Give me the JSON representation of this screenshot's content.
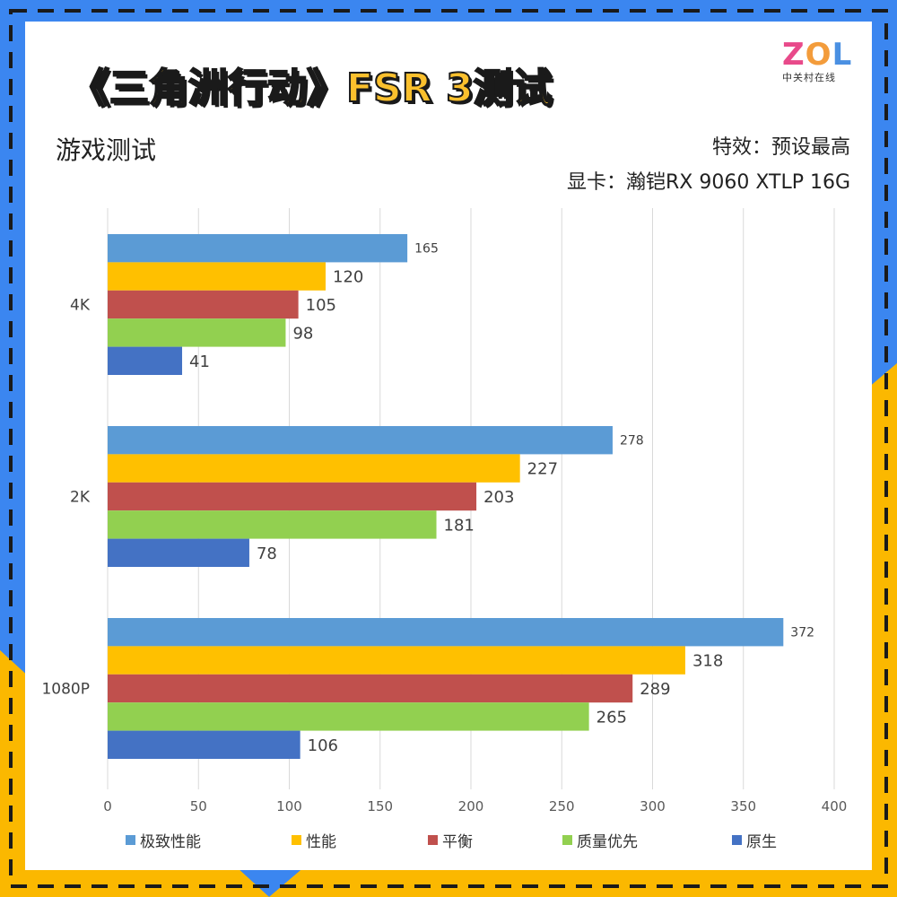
{
  "title": "《三角洲行动》FSR 3测试",
  "logo": {
    "main": "ZOL",
    "sub": "中关村在线"
  },
  "subtitle": "游戏测试",
  "notes": {
    "effects": "特效：预设最高",
    "gpu": "显卡：瀚铠RX 9060 XTLP 16G"
  },
  "colors": {
    "frame_blue": "#3b86f0",
    "frame_yellow": "#fbb800",
    "dash": "#1a1a1a",
    "title_fill": "#fbc02d"
  },
  "chart_data": {
    "type": "bar",
    "orientation": "horizontal",
    "categories": [
      "4K",
      "2K",
      "1080P"
    ],
    "series": [
      {
        "name": "极致性能",
        "color": "#5b9bd5",
        "values": [
          165,
          278,
          372
        ]
      },
      {
        "name": "性能",
        "color": "#ffc000",
        "values": [
          120,
          227,
          318
        ]
      },
      {
        "name": "平衡",
        "color": "#c0504d",
        "values": [
          105,
          203,
          289
        ]
      },
      {
        "name": "质量优先",
        "color": "#92d050",
        "values": [
          98,
          181,
          265
        ]
      },
      {
        "name": "原生",
        "color": "#4472c4",
        "values": [
          41,
          78,
          106
        ]
      }
    ],
    "xlim": [
      0,
      400
    ],
    "xticks": [
      "0",
      "50",
      "100",
      "150",
      "200",
      "250",
      "300",
      "350",
      "400"
    ],
    "grid": true,
    "legend": "bottom"
  }
}
